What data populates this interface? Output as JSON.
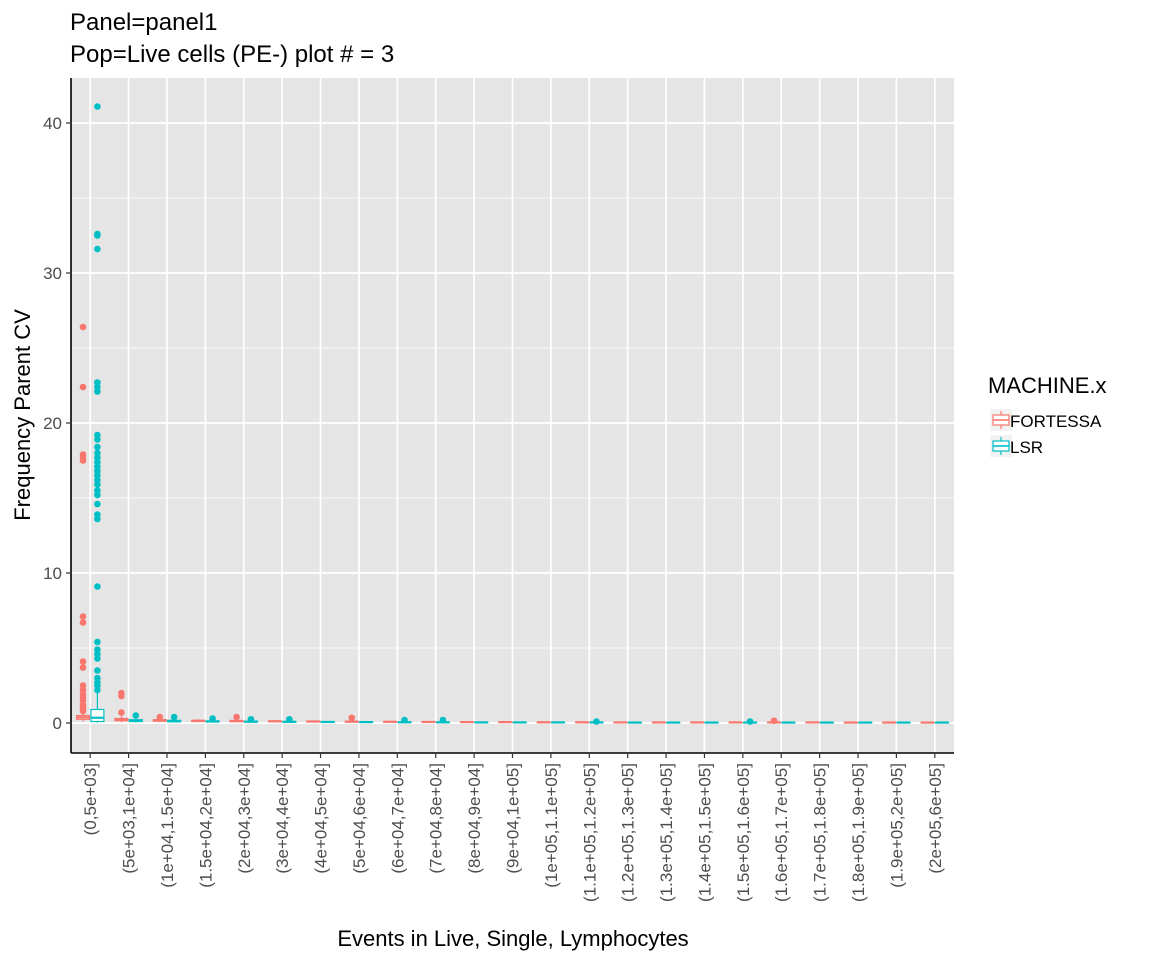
{
  "chart_data": {
    "type": "boxplot",
    "title_line1": "Panel=panel1",
    "title_line2": "Pop=Live cells (PE-) plot # = 3",
    "xlabel": "Events in Live, Single, Lymphocytes",
    "ylabel": "Frequency Parent CV",
    "ylim": [
      -2,
      43
    ],
    "yticks": [
      0,
      10,
      20,
      30,
      40
    ],
    "grid": true,
    "legend_title": "MACHINE.x",
    "legend_position": "right",
    "categories": [
      "(0,5e+03]",
      "(5e+03,1e+04]",
      "(1e+04,1.5e+04]",
      "(1.5e+04,2e+04]",
      "(2e+04,3e+04]",
      "(3e+04,4e+04]",
      "(4e+04,5e+04]",
      "(5e+04,6e+04]",
      "(6e+04,7e+04]",
      "(7e+04,8e+04]",
      "(8e+04,9e+04]",
      "(9e+04,1e+05]",
      "(1e+05,1.1e+05]",
      "(1.1e+05,1.2e+05]",
      "(1.2e+05,1.3e+05]",
      "(1.3e+05,1.4e+05]",
      "(1.4e+05,1.5e+05]",
      "(1.5e+05,1.6e+05]",
      "(1.6e+05,1.7e+05]",
      "(1.7e+05,1.8e+05]",
      "(1.8e+05,1.9e+05]",
      "(1.9e+05,2e+05]",
      "(2e+05,6e+05]"
    ],
    "series": [
      {
        "name": "FORTESSA",
        "color": "#F8766D",
        "boxes": [
          {
            "q1": 0.25,
            "median": 0.38,
            "q3": 0.5,
            "lo": 0.1,
            "hi": 0.7,
            "outliers": [
              26.4,
              22.4,
              17.9,
              17.7,
              17.5,
              7.1,
              6.7,
              4.1,
              3.7,
              2.5,
              2.2,
              1.9,
              1.7,
              1.5,
              1.2,
              1.0,
              0.8
            ]
          },
          {
            "q1": 0.15,
            "median": 0.22,
            "q3": 0.3,
            "lo": 0.05,
            "hi": 0.45,
            "outliers": [
              2.0,
              1.8,
              0.7
            ]
          },
          {
            "q1": 0.12,
            "median": 0.17,
            "q3": 0.22,
            "lo": 0.05,
            "hi": 0.3,
            "outliers": [
              0.4
            ]
          },
          {
            "q1": 0.1,
            "median": 0.14,
            "q3": 0.18,
            "lo": 0.04,
            "hi": 0.25,
            "outliers": []
          },
          {
            "q1": 0.09,
            "median": 0.13,
            "q3": 0.17,
            "lo": 0.04,
            "hi": 0.25,
            "outliers": [
              0.4
            ]
          },
          {
            "q1": 0.08,
            "median": 0.11,
            "q3": 0.14,
            "lo": 0.03,
            "hi": 0.2,
            "outliers": []
          },
          {
            "q1": 0.07,
            "median": 0.1,
            "q3": 0.13,
            "lo": 0.03,
            "hi": 0.18,
            "outliers": []
          },
          {
            "q1": 0.06,
            "median": 0.09,
            "q3": 0.12,
            "lo": 0.03,
            "hi": 0.15,
            "outliers": [
              0.35
            ]
          },
          {
            "q1": 0.06,
            "median": 0.08,
            "q3": 0.1,
            "lo": 0.03,
            "hi": 0.13,
            "outliers": []
          },
          {
            "q1": 0.05,
            "median": 0.07,
            "q3": 0.09,
            "lo": 0.02,
            "hi": 0.12,
            "outliers": []
          },
          {
            "q1": 0.05,
            "median": 0.06,
            "q3": 0.08,
            "lo": 0.02,
            "hi": 0.1,
            "outliers": []
          },
          {
            "q1": 0.04,
            "median": 0.06,
            "q3": 0.07,
            "lo": 0.02,
            "hi": 0.1,
            "outliers": []
          },
          {
            "q1": 0.04,
            "median": 0.05,
            "q3": 0.06,
            "lo": 0.02,
            "hi": 0.08,
            "outliers": []
          },
          {
            "q1": 0.04,
            "median": 0.05,
            "q3": 0.06,
            "lo": 0.02,
            "hi": 0.08,
            "outliers": []
          },
          {
            "q1": 0.03,
            "median": 0.04,
            "q3": 0.05,
            "lo": 0.02,
            "hi": 0.07,
            "outliers": []
          },
          {
            "q1": 0.03,
            "median": 0.04,
            "q3": 0.05,
            "lo": 0.02,
            "hi": 0.06,
            "outliers": []
          },
          {
            "q1": 0.03,
            "median": 0.04,
            "q3": 0.05,
            "lo": 0.01,
            "hi": 0.06,
            "outliers": []
          },
          {
            "q1": 0.03,
            "median": 0.04,
            "q3": 0.05,
            "lo": 0.01,
            "hi": 0.06,
            "outliers": []
          },
          {
            "q1": 0.03,
            "median": 0.04,
            "q3": 0.05,
            "lo": 0.01,
            "hi": 0.06,
            "outliers": [
              0.15
            ]
          },
          {
            "q1": 0.03,
            "median": 0.04,
            "q3": 0.05,
            "lo": 0.01,
            "hi": 0.06,
            "outliers": []
          },
          {
            "q1": 0.03,
            "median": 0.03,
            "q3": 0.04,
            "lo": 0.01,
            "hi": 0.05,
            "outliers": []
          },
          {
            "q1": 0.02,
            "median": 0.03,
            "q3": 0.04,
            "lo": 0.01,
            "hi": 0.05,
            "outliers": []
          },
          {
            "q1": 0.02,
            "median": 0.03,
            "q3": 0.04,
            "lo": 0.01,
            "hi": 0.05,
            "outliers": []
          }
        ]
      },
      {
        "name": "LSR",
        "color": "#00BFC4",
        "boxes": [
          {
            "q1": 0.1,
            "median": 0.35,
            "q3": 0.9,
            "lo": 0.02,
            "hi": 2.0,
            "outliers": [
              41.1,
              32.6,
              32.5,
              31.6,
              22.7,
              22.4,
              22.1,
              19.2,
              18.9,
              18.4,
              18.0,
              17.7,
              17.4,
              17.1,
              16.8,
              16.5,
              16.2,
              15.9,
              15.5,
              15.2,
              14.6,
              13.9,
              13.6,
              9.1,
              5.4,
              4.9,
              4.6,
              4.3,
              3.5,
              3.0,
              2.7,
              2.5,
              2.2
            ]
          },
          {
            "q1": 0.1,
            "median": 0.15,
            "q3": 0.22,
            "lo": 0.03,
            "hi": 0.35,
            "outliers": [
              0.5
            ]
          },
          {
            "q1": 0.08,
            "median": 0.12,
            "q3": 0.18,
            "lo": 0.03,
            "hi": 0.28,
            "outliers": [
              0.4
            ]
          },
          {
            "q1": 0.07,
            "median": 0.1,
            "q3": 0.14,
            "lo": 0.02,
            "hi": 0.22,
            "outliers": [
              0.3
            ]
          },
          {
            "q1": 0.06,
            "median": 0.09,
            "q3": 0.12,
            "lo": 0.02,
            "hi": 0.18,
            "outliers": [
              0.25
            ]
          },
          {
            "q1": 0.05,
            "median": 0.08,
            "q3": 0.1,
            "lo": 0.02,
            "hi": 0.15,
            "outliers": [
              0.25
            ]
          },
          {
            "q1": 0.05,
            "median": 0.07,
            "q3": 0.09,
            "lo": 0.02,
            "hi": 0.13,
            "outliers": []
          },
          {
            "q1": 0.04,
            "median": 0.06,
            "q3": 0.08,
            "lo": 0.02,
            "hi": 0.12,
            "outliers": []
          },
          {
            "q1": 0.04,
            "median": 0.05,
            "q3": 0.07,
            "lo": 0.02,
            "hi": 0.1,
            "outliers": [
              0.2
            ]
          },
          {
            "q1": 0.04,
            "median": 0.05,
            "q3": 0.06,
            "lo": 0.02,
            "hi": 0.09,
            "outliers": [
              0.2
            ]
          },
          {
            "q1": 0.03,
            "median": 0.04,
            "q3": 0.05,
            "lo": 0.01,
            "hi": 0.08,
            "outliers": []
          },
          {
            "q1": 0.03,
            "median": 0.04,
            "q3": 0.05,
            "lo": 0.01,
            "hi": 0.07,
            "outliers": []
          },
          {
            "q1": 0.03,
            "median": 0.04,
            "q3": 0.05,
            "lo": 0.01,
            "hi": 0.06,
            "outliers": []
          },
          {
            "q1": 0.03,
            "median": 0.04,
            "q3": 0.05,
            "lo": 0.01,
            "hi": 0.06,
            "outliers": [
              0.1
            ]
          },
          {
            "q1": 0.02,
            "median": 0.03,
            "q3": 0.04,
            "lo": 0.01,
            "hi": 0.05,
            "outliers": []
          },
          {
            "q1": 0.02,
            "median": 0.03,
            "q3": 0.04,
            "lo": 0.01,
            "hi": 0.05,
            "outliers": []
          },
          {
            "q1": 0.02,
            "median": 0.03,
            "q3": 0.04,
            "lo": 0.01,
            "hi": 0.05,
            "outliers": []
          },
          {
            "q1": 0.02,
            "median": 0.03,
            "q3": 0.04,
            "lo": 0.01,
            "hi": 0.05,
            "outliers": [
              0.1
            ]
          },
          {
            "q1": 0.02,
            "median": 0.03,
            "q3": 0.04,
            "lo": 0.01,
            "hi": 0.05,
            "outliers": []
          },
          {
            "q1": 0.02,
            "median": 0.03,
            "q3": 0.04,
            "lo": 0.01,
            "hi": 0.05,
            "outliers": []
          },
          {
            "q1": 0.02,
            "median": 0.03,
            "q3": 0.04,
            "lo": 0.01,
            "hi": 0.05,
            "outliers": []
          },
          {
            "q1": 0.02,
            "median": 0.03,
            "q3": 0.04,
            "lo": 0.01,
            "hi": 0.05,
            "outliers": []
          },
          {
            "q1": 0.02,
            "median": 0.03,
            "q3": 0.04,
            "lo": 0.01,
            "hi": 0.05,
            "outliers": []
          }
        ]
      }
    ]
  }
}
